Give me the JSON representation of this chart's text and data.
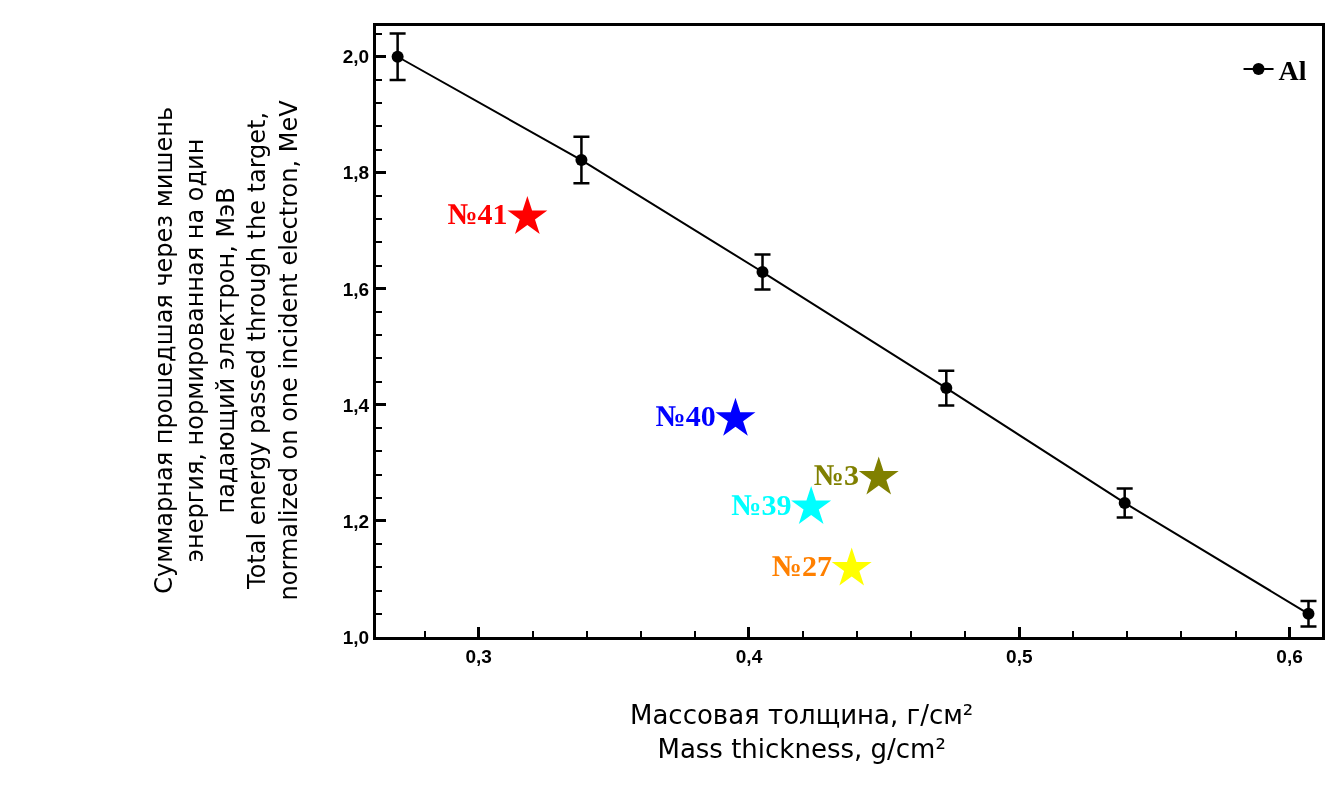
{
  "chart_data": {
    "type": "line",
    "xlabel": "Массовая толщина, г/см²\nMass thickness, g/cm²",
    "ylabel": "Суммарная прошедшая через мишень\nэнергия, нормированная на один\nпадающий электрон, МэВ\nTotal energy passed through the target,\nnormalized on one incident electron, MeV",
    "xlim": [
      0.262,
      0.612
    ],
    "ylim": [
      1.0,
      2.053
    ],
    "xticks": [
      {
        "value": 0.3,
        "label": "0,3"
      },
      {
        "value": 0.4,
        "label": "0,4"
      },
      {
        "value": 0.5,
        "label": "0,5"
      },
      {
        "value": 0.6,
        "label": "0,6"
      }
    ],
    "yticks": [
      {
        "value": 1.0,
        "label": "1,0"
      },
      {
        "value": 1.2,
        "label": "1,2"
      },
      {
        "value": 1.4,
        "label": "1,4"
      },
      {
        "value": 1.6,
        "label": "1,6"
      },
      {
        "value": 1.8,
        "label": "1,8"
      },
      {
        "value": 2.0,
        "label": "2,0"
      }
    ],
    "legend": "top right",
    "series": [
      {
        "name": "Al",
        "color": "#000000",
        "marker": "circle",
        "line_style": "solid",
        "x": [
          0.27,
          0.338,
          0.405,
          0.473,
          0.539,
          0.607
        ],
        "values": [
          2.0,
          1.822,
          1.629,
          1.429,
          1.231,
          1.04
        ],
        "errors": [
          0.04,
          0.04,
          0.03,
          0.03,
          0.025,
          0.022
        ]
      },
      {
        "name": "№41",
        "type": "scatter",
        "color": "#ff0000",
        "marker": "star",
        "x": [
          0.318
        ],
        "values": [
          1.724
        ]
      },
      {
        "name": "№40",
        "type": "scatter",
        "color": "#0000ff",
        "marker": "star",
        "x": [
          0.395
        ],
        "values": [
          1.376
        ]
      },
      {
        "name": "№39",
        "type": "scatter",
        "color": "#00ffff",
        "marker": "star",
        "x": [
          0.423
        ],
        "values": [
          1.224
        ]
      },
      {
        "name": "№3",
        "type": "scatter",
        "color": "#808000",
        "marker": "star",
        "x": [
          0.448
        ],
        "values": [
          1.275
        ]
      },
      {
        "name": "№27",
        "type": "scatter",
        "color": "#ff8000",
        "colors": [
          "#ffff00"
        ],
        "marker": "star",
        "x": [
          0.438
        ],
        "values": [
          1.118
        ]
      }
    ]
  }
}
